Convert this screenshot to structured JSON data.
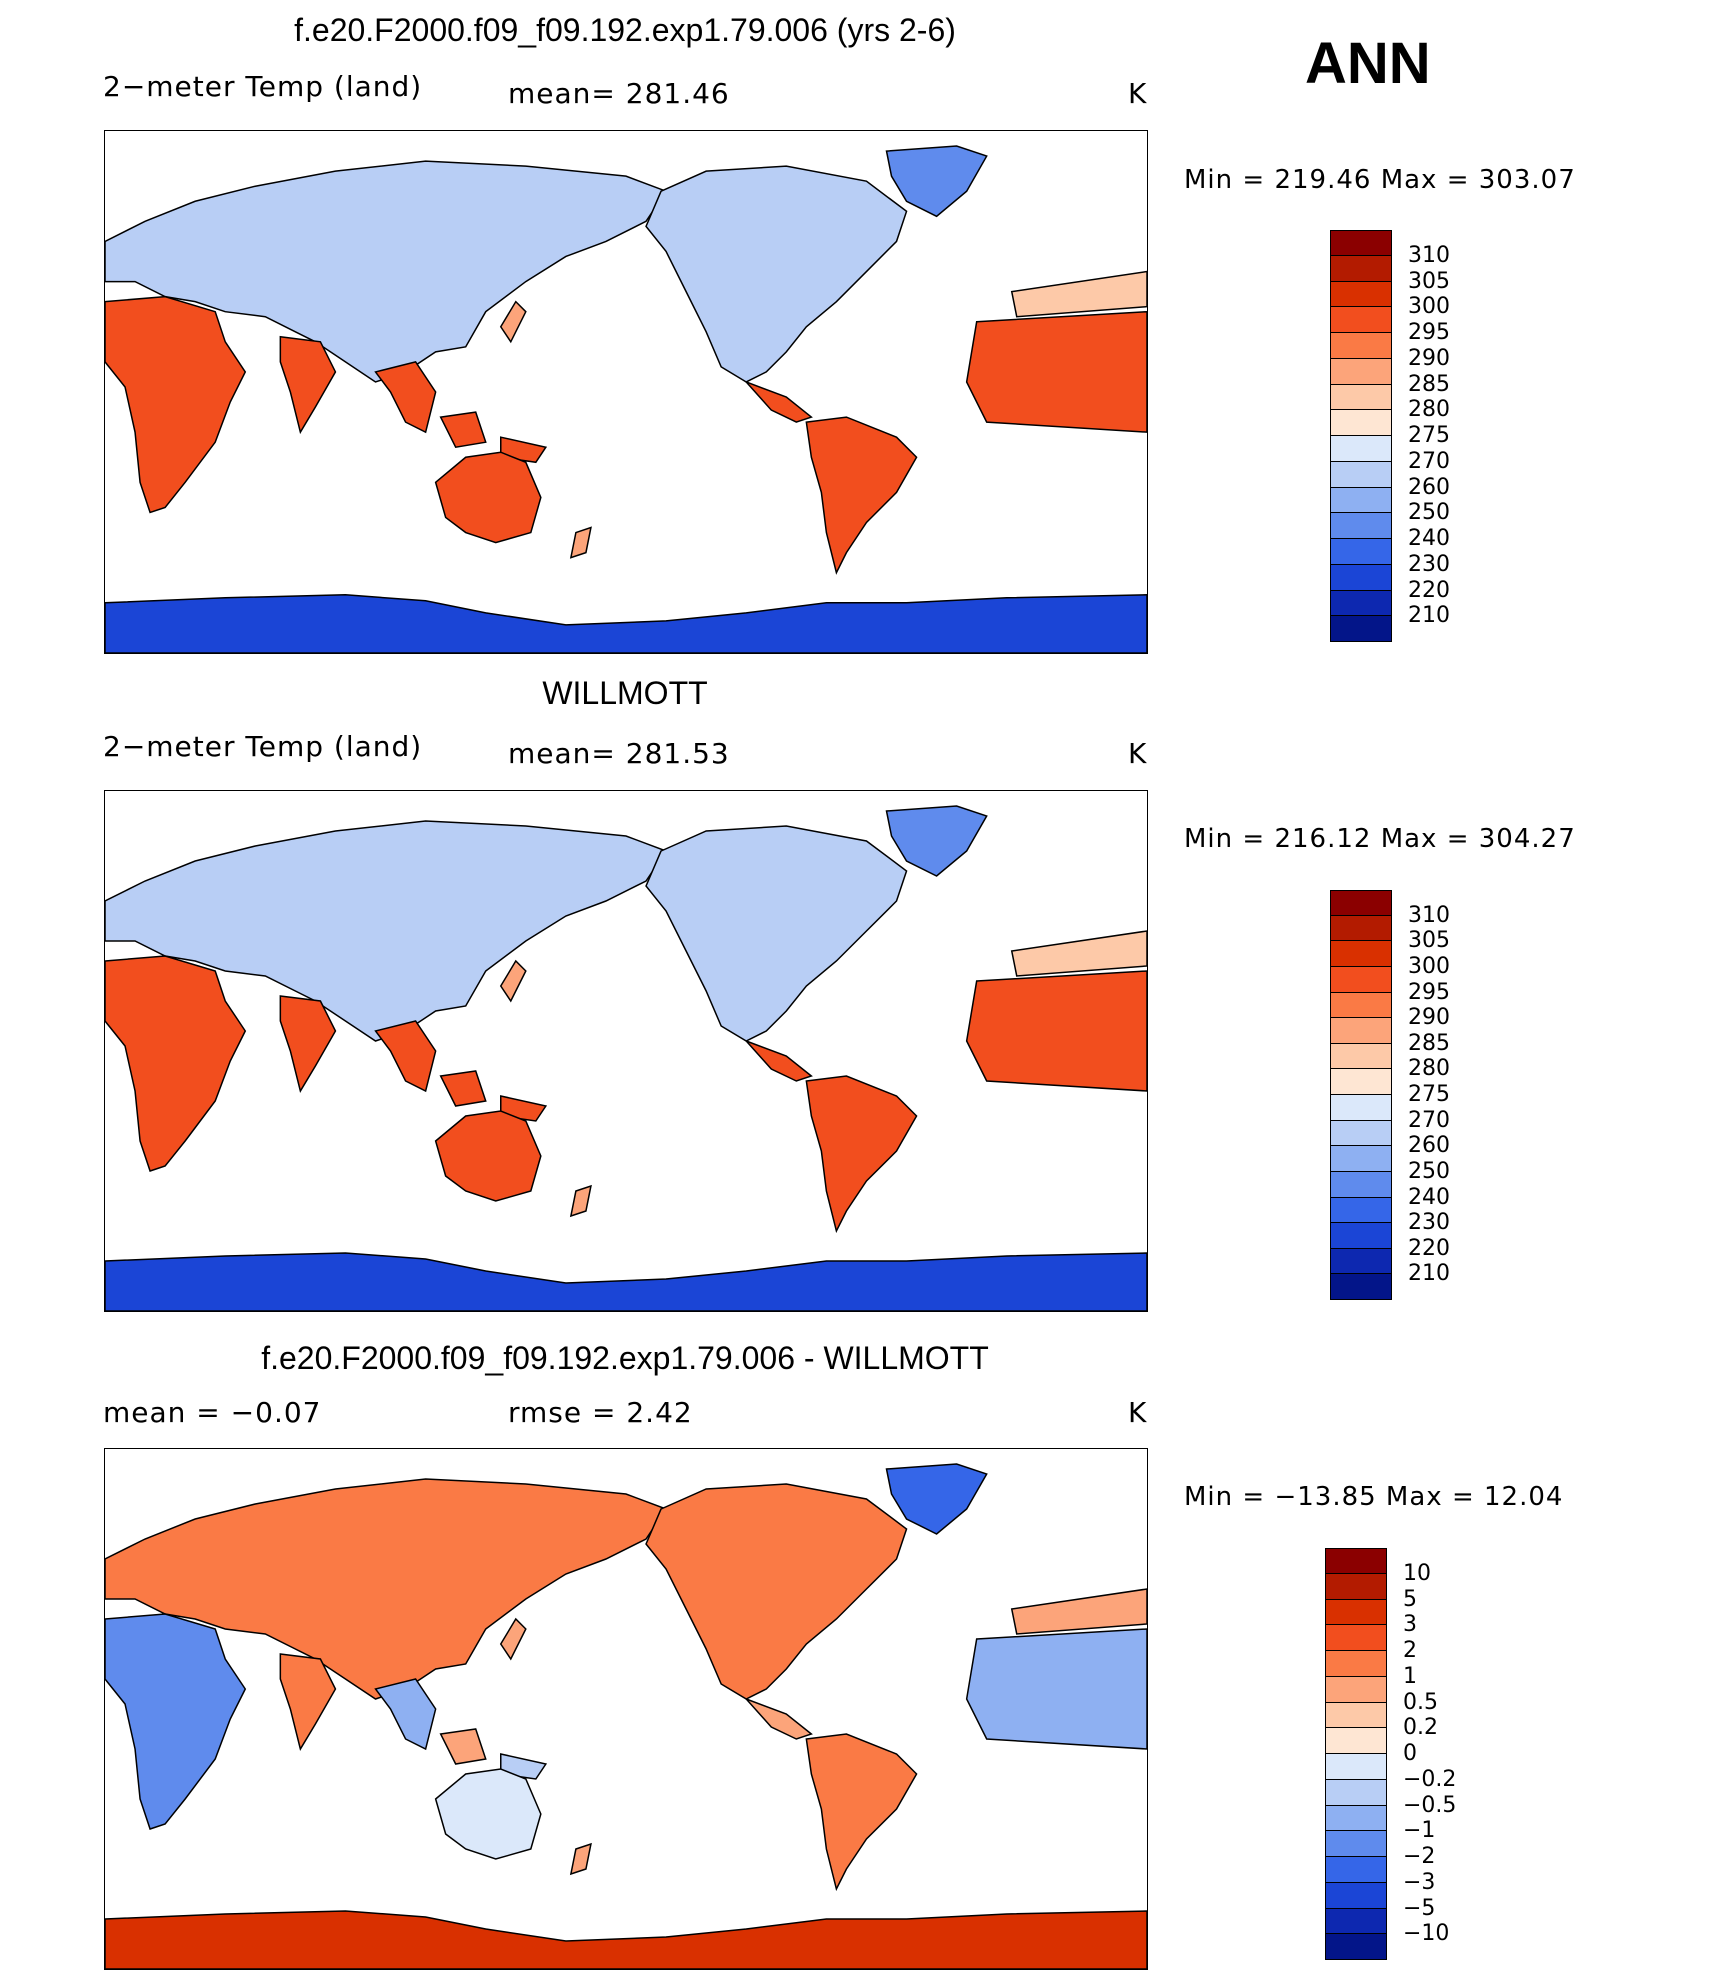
{
  "season": "ANN",
  "panels": [
    {
      "title": "f.e20.F2000.f09_f09.192.exp1.79.006 (yrs 2-6)",
      "left_label": "2−meter Temp  (land)",
      "mid_label": "mean=  281.46",
      "units": "K",
      "minmax": "Min  =  219.46  Max  =  303.07",
      "colorbar": {
        "labels": [
          "310",
          "305",
          "300",
          "295",
          "290",
          "285",
          "280",
          "275",
          "270",
          "260",
          "250",
          "240",
          "230",
          "220",
          "210"
        ],
        "colors": [
          "#8b0000",
          "#b31b00",
          "#d93000",
          "#f24e1e",
          "#fa7a45",
          "#fca47a",
          "#fdc9a8",
          "#fee6d3",
          "#dbe8fa",
          "#b8cef5",
          "#8eb0f2",
          "#5f8bed",
          "#3566e8",
          "#1b45d6",
          "#0d28b0",
          "#031589"
        ]
      },
      "map_style": "warm"
    },
    {
      "title": "WILLMOTT",
      "left_label": "2−meter Temp  (land)",
      "mid_label": "mean=  281.53",
      "units": "K",
      "minmax": "Min  =  216.12  Max  =  304.27",
      "colorbar": {
        "labels": [
          "310",
          "305",
          "300",
          "295",
          "290",
          "285",
          "280",
          "275",
          "270",
          "260",
          "250",
          "240",
          "230",
          "220",
          "210"
        ],
        "colors": [
          "#8b0000",
          "#b31b00",
          "#d93000",
          "#f24e1e",
          "#fa7a45",
          "#fca47a",
          "#fdc9a8",
          "#fee6d3",
          "#dbe8fa",
          "#b8cef5",
          "#8eb0f2",
          "#5f8bed",
          "#3566e8",
          "#1b45d6",
          "#0d28b0",
          "#031589"
        ]
      },
      "map_style": "warm"
    },
    {
      "title": "f.e20.F2000.f09_f09.192.exp1.79.006 - WILLMOTT",
      "left_label": "mean  =     −0.07",
      "mid_label": "rmse  =     2.42",
      "units": "K",
      "minmax": "Min  =  −13.85  Max  =    12.04",
      "colorbar": {
        "labels": [
          "10",
          "5",
          "3",
          "2",
          "1",
          "0.5",
          "0.2",
          "0",
          "−0.2",
          "−0.5",
          "−1",
          "−2",
          "−3",
          "−5",
          "−10"
        ],
        "colors": [
          "#8b0000",
          "#b31b00",
          "#d93000",
          "#f24e1e",
          "#fa7a45",
          "#fca47a",
          "#fdc9a8",
          "#fee6d3",
          "#dbe8fa",
          "#b8cef5",
          "#8eb0f2",
          "#5f8bed",
          "#3566e8",
          "#1b45d6",
          "#0d28b0",
          "#031589"
        ]
      },
      "map_style": "diff"
    }
  ]
}
